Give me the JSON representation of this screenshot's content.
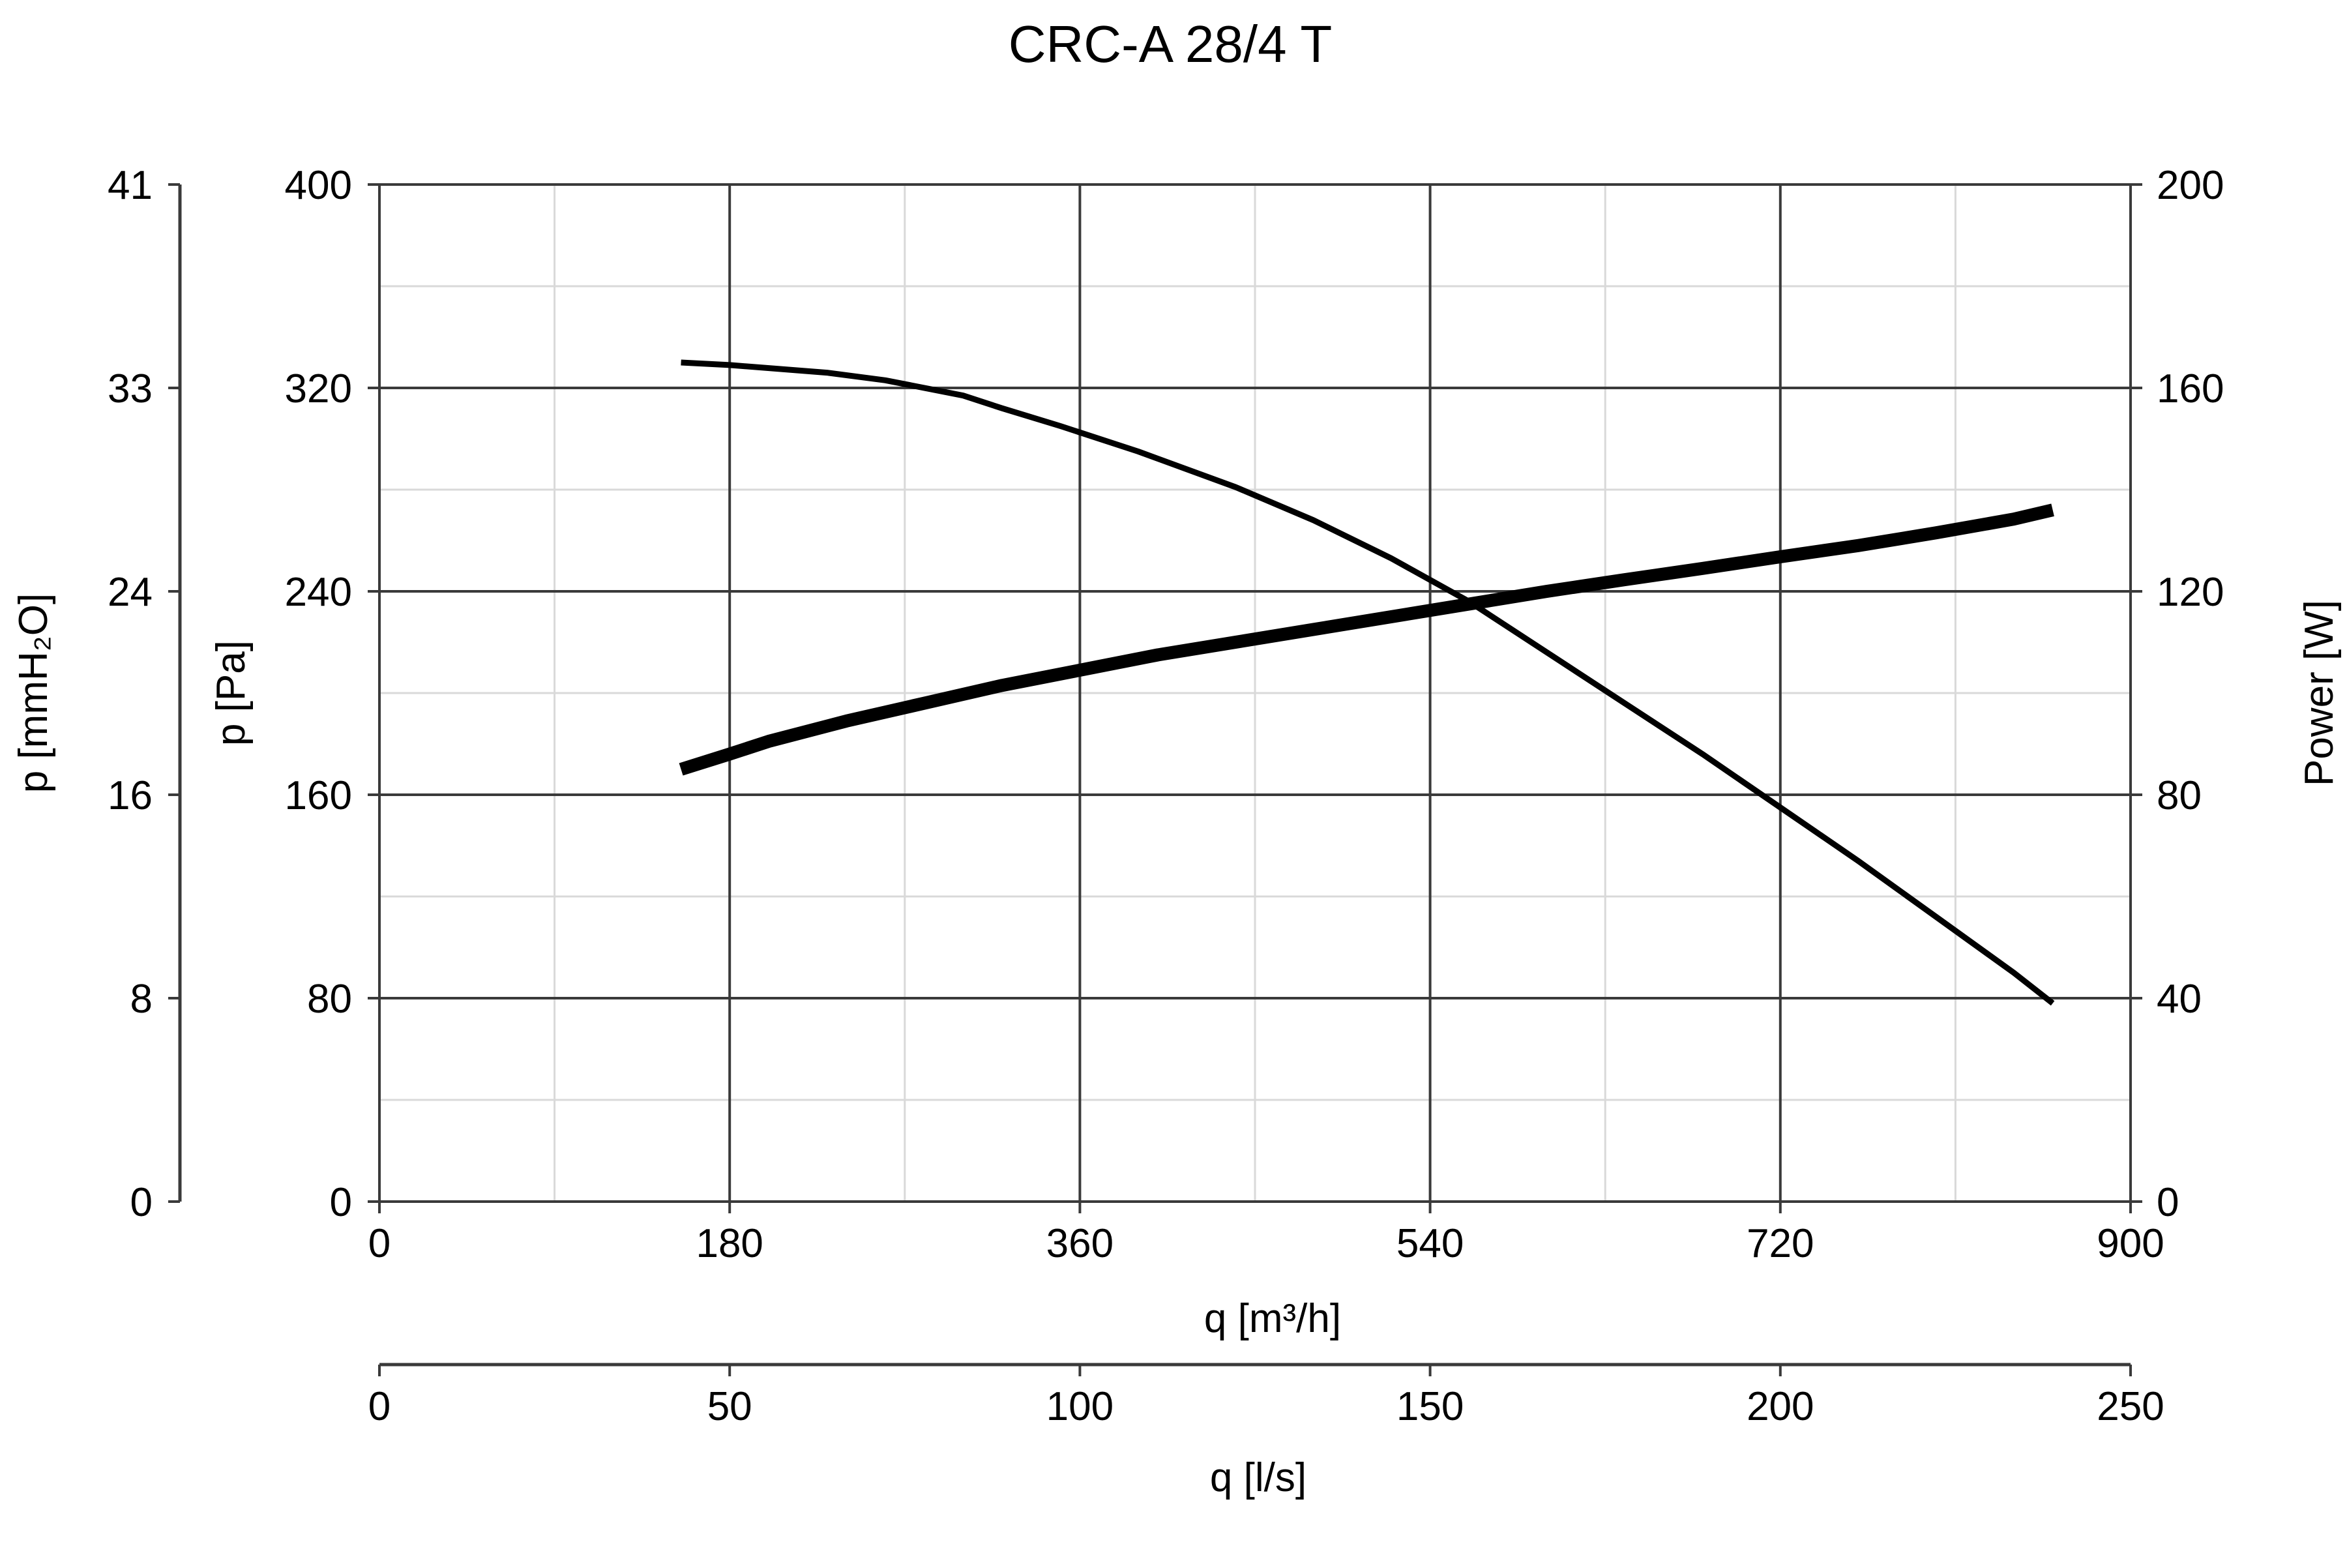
{
  "chart_data": {
    "type": "line",
    "title": "CRC-A 28/4 T",
    "xlabel": "q [m³/h]",
    "x_secondary_label": "q [l/s]",
    "ylabel": "p [Pa]",
    "y_secondary_label": "p [mmH₂O]",
    "y_right_label": "Power [W]",
    "xlim": [
      0,
      900
    ],
    "ylim": [
      0,
      400
    ],
    "y_right_lim": [
      0,
      200
    ],
    "x_secondary_lim": [
      0,
      250
    ],
    "y_secondary_lim": [
      0,
      41
    ],
    "x_ticks": [
      "0",
      "180",
      "360",
      "540",
      "720",
      "900"
    ],
    "x_secondary_ticks": [
      "0",
      "50",
      "100",
      "150",
      "200",
      "250"
    ],
    "y_ticks": [
      "0",
      "80",
      "160",
      "240",
      "320",
      "400"
    ],
    "y_secondary_ticks": [
      "0",
      "8",
      "16",
      "24",
      "33",
      "41"
    ],
    "y_right_ticks": [
      "0",
      "40",
      "80",
      "120",
      "160",
      "200"
    ],
    "grid": true,
    "series": [
      {
        "axis": "left",
        "x": [
          155,
          180,
          230,
          260,
          300,
          320,
          350,
          390,
          440,
          480,
          520,
          560,
          580,
          600,
          640,
          680,
          720,
          760,
          800,
          840,
          860
        ],
        "y": [
          330,
          329,
          326,
          323,
          317,
          312,
          305,
          295,
          281,
          268,
          253,
          236,
          226,
          216,
          196,
          176,
          155,
          134,
          112,
          90,
          78
        ]
      },
      {
        "axis": "right",
        "x": [
          155,
          180,
          200,
          240,
          280,
          320,
          360,
          400,
          440,
          480,
          520,
          560,
          600,
          640,
          680,
          720,
          760,
          800,
          840,
          860
        ],
        "y": [
          85,
          88,
          90.5,
          94.5,
          98,
          101.5,
          104.5,
          107.5,
          110,
          112.5,
          115,
          117.5,
          120,
          122.3,
          124.5,
          126.8,
          129,
          131.5,
          134.2,
          136
        ]
      }
    ]
  }
}
